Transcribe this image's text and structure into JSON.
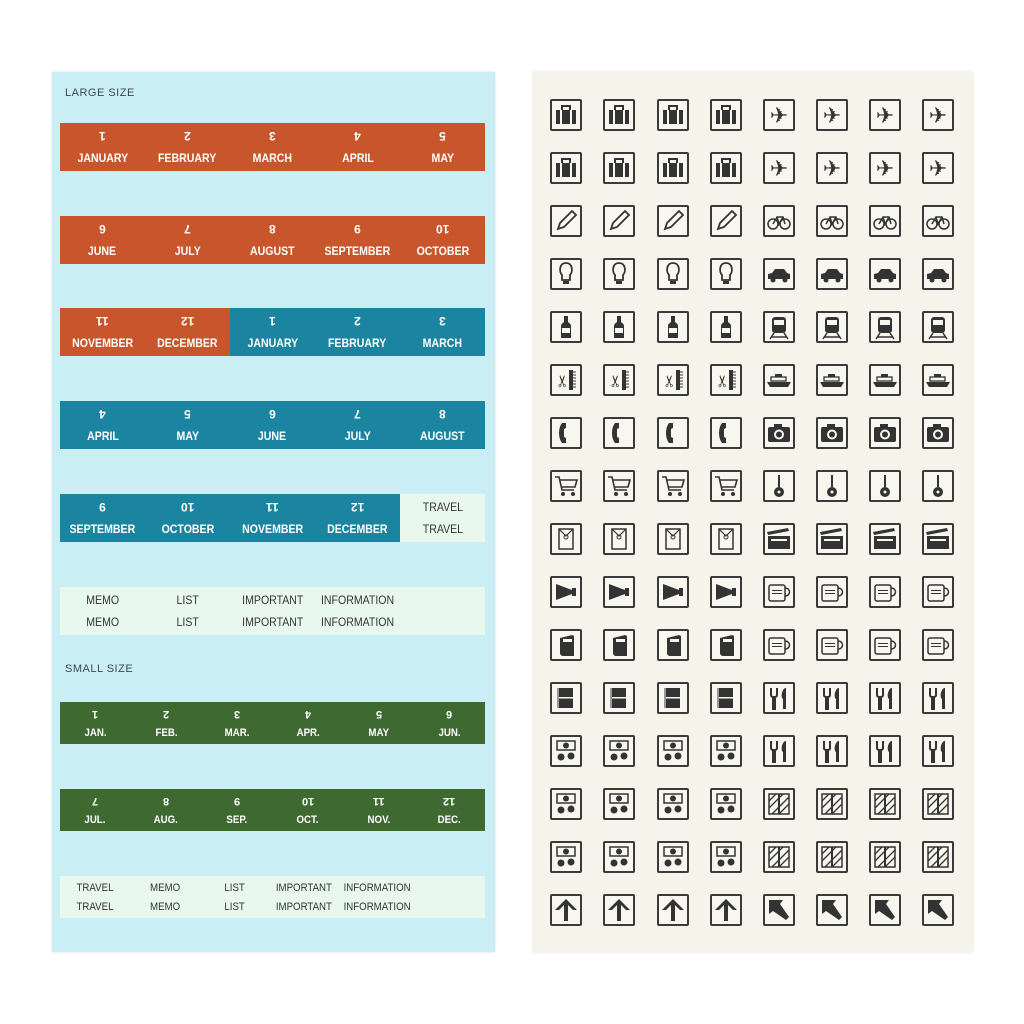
{
  "colors": {
    "left_sheet": "#c9eef3",
    "right_sheet": "#f6f4ea",
    "orange": "#c8552b",
    "teal": "#1b84a1",
    "green": "#3e6a31",
    "pale": "#e9f8ef",
    "icon": "#3a3a3a"
  },
  "large_label": "LARGE SIZE",
  "small_label": "SMALL SIZE",
  "large_rows": [
    [
      {
        "n": "1",
        "t": "JANUARY",
        "c": "orange"
      },
      {
        "n": "2",
        "t": "FEBRUARY",
        "c": "orange"
      },
      {
        "n": "3",
        "t": "MARCH",
        "c": "orange"
      },
      {
        "n": "4",
        "t": "APRIL",
        "c": "orange"
      },
      {
        "n": "5",
        "t": "MAY",
        "c": "orange"
      }
    ],
    [
      {
        "n": "6",
        "t": "JUNE",
        "c": "orange"
      },
      {
        "n": "7",
        "t": "JULY",
        "c": "orange"
      },
      {
        "n": "8",
        "t": "AUGUST",
        "c": "orange"
      },
      {
        "n": "9",
        "t": "SEPTEMBER",
        "c": "orange"
      },
      {
        "n": "10",
        "t": "OCTOBER",
        "c": "orange"
      }
    ],
    [
      {
        "n": "11",
        "t": "NOVEMBER",
        "c": "orange"
      },
      {
        "n": "12",
        "t": "DECEMBER",
        "c": "orange"
      },
      {
        "n": "1",
        "t": "JANUARY",
        "c": "teal"
      },
      {
        "n": "2",
        "t": "FEBRUARY",
        "c": "teal"
      },
      {
        "n": "3",
        "t": "MARCH",
        "c": "teal"
      }
    ],
    [
      {
        "n": "4",
        "t": "APRIL",
        "c": "teal"
      },
      {
        "n": "5",
        "t": "MAY",
        "c": "teal"
      },
      {
        "n": "6",
        "t": "JUNE",
        "c": "teal"
      },
      {
        "n": "7",
        "t": "JULY",
        "c": "teal"
      },
      {
        "n": "8",
        "t": "AUGUST",
        "c": "teal"
      }
    ],
    [
      {
        "n": "9",
        "t": "SEPTEMBER",
        "c": "teal"
      },
      {
        "n": "10",
        "t": "OCTOBER",
        "c": "teal"
      },
      {
        "n": "11",
        "t": "NOVEMBER",
        "c": "teal"
      },
      {
        "n": "12",
        "t": "DECEMBER",
        "c": "teal"
      },
      {
        "n": "TRAVEL",
        "t": "TRAVEL",
        "c": "pale"
      }
    ],
    [
      {
        "n": "MEMO",
        "t": "MEMO",
        "c": "pale"
      },
      {
        "n": "LIST",
        "t": "LIST",
        "c": "pale"
      },
      {
        "n": "IMPORTANT",
        "t": "IMPORTANT",
        "c": "pale"
      },
      {
        "n": "INFORMATION",
        "t": "INFORMATION",
        "c": "pale"
      },
      {
        "n": "",
        "t": "",
        "c": "pale"
      }
    ]
  ],
  "small_rows": [
    [
      {
        "n": "1",
        "t": "JAN.",
        "c": "green"
      },
      {
        "n": "2",
        "t": "FEB.",
        "c": "green"
      },
      {
        "n": "3",
        "t": "MAR.",
        "c": "green"
      },
      {
        "n": "4",
        "t": "APR.",
        "c": "green"
      },
      {
        "n": "5",
        "t": "MAY",
        "c": "green"
      },
      {
        "n": "6",
        "t": "JUN.",
        "c": "green"
      }
    ],
    [
      {
        "n": "7",
        "t": "JUL.",
        "c": "green"
      },
      {
        "n": "8",
        "t": "AUG.",
        "c": "green"
      },
      {
        "n": "9",
        "t": "SEP.",
        "c": "green"
      },
      {
        "n": "10",
        "t": "OCT.",
        "c": "green"
      },
      {
        "n": "11",
        "t": "NOV.",
        "c": "green"
      },
      {
        "n": "12",
        "t": "DEC.",
        "c": "green"
      }
    ],
    [
      {
        "n": "TRAVEL",
        "t": "TRAVEL",
        "c": "pale"
      },
      {
        "n": "MEMO",
        "t": "MEMO",
        "c": "pale"
      },
      {
        "n": "LIST",
        "t": "LIST",
        "c": "pale"
      },
      {
        "n": "IMPORTANT",
        "t": "IMPORTANT",
        "c": "pale"
      },
      {
        "n": "INFORMATION",
        "t": "INFORMATION",
        "c": "pale"
      },
      {
        "n": "",
        "t": "",
        "c": "pale"
      }
    ]
  ],
  "icon_rows": [
    [
      "luggage",
      "airplane"
    ],
    [
      "luggage",
      "airplane"
    ],
    [
      "pencil",
      "bicycle"
    ],
    [
      "light-bulb",
      "car"
    ],
    [
      "bottle",
      "train"
    ],
    [
      "scissors-comb",
      "ship"
    ],
    [
      "telephone",
      "camera"
    ],
    [
      "shopping-cart",
      "guitar"
    ],
    [
      "envelope",
      "clapperboard"
    ],
    [
      "megaphone",
      "mug"
    ],
    [
      "book",
      "mug"
    ],
    [
      "notebook",
      "cutlery"
    ],
    [
      "money",
      "cutlery"
    ],
    [
      "money",
      "gift"
    ],
    [
      "money",
      "gift"
    ],
    [
      "arrow-up",
      "arrow-up-left"
    ]
  ]
}
